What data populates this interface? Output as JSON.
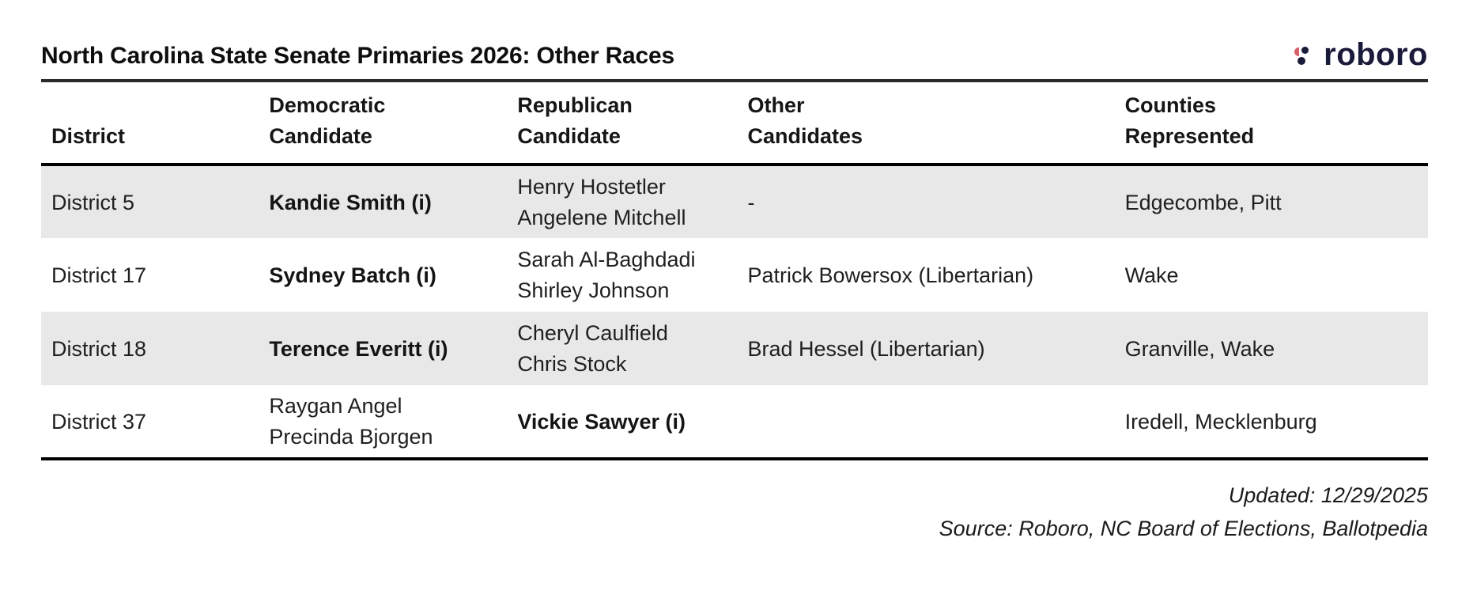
{
  "header": {
    "title": "North Carolina State Senate Primaries 2026: Other Races",
    "logo_text": "roboro"
  },
  "icons": {
    "logo_mark": "roboro-dots-mark"
  },
  "colors": {
    "row_alternate": "#e8e8e8",
    "rule_black": "#000000",
    "logo_navy": "#1a1a3a",
    "logo_red": "#d85f6c"
  },
  "table": {
    "columns": [
      "District",
      "Democratic\nCandidate",
      "Republican\nCandidate",
      "Other\nCandidates",
      "Counties\nRepresented"
    ],
    "rows": [
      {
        "district": "District 5",
        "dem": "Kandie Smith (i)",
        "rep": "Henry Hostetler\nAngelene Mitchell",
        "other": "-",
        "counties": "Edgecombe, Pitt"
      },
      {
        "district": "District 17",
        "dem": "Sydney Batch (i)",
        "rep": "Sarah Al-Baghdadi\nShirley Johnson",
        "other": "Patrick Bowersox (Libertarian)",
        "counties": "Wake"
      },
      {
        "district": "District 18",
        "dem": "Terence Everitt (i)",
        "rep": "Cheryl Caulfield\nChris Stock",
        "other": "Brad Hessel (Libertarian)",
        "counties": "Granville, Wake"
      },
      {
        "district": "District 37",
        "dem": "Raygan Angel\nPrecinda Bjorgen",
        "rep": "Vickie Sawyer (i)",
        "other": "",
        "counties": "Iredell, Mecklenburg"
      }
    ]
  },
  "footer": {
    "updated": "Updated: 12/29/2025",
    "source": "Source: Roboro, NC Board of Elections, Ballotpedia"
  }
}
